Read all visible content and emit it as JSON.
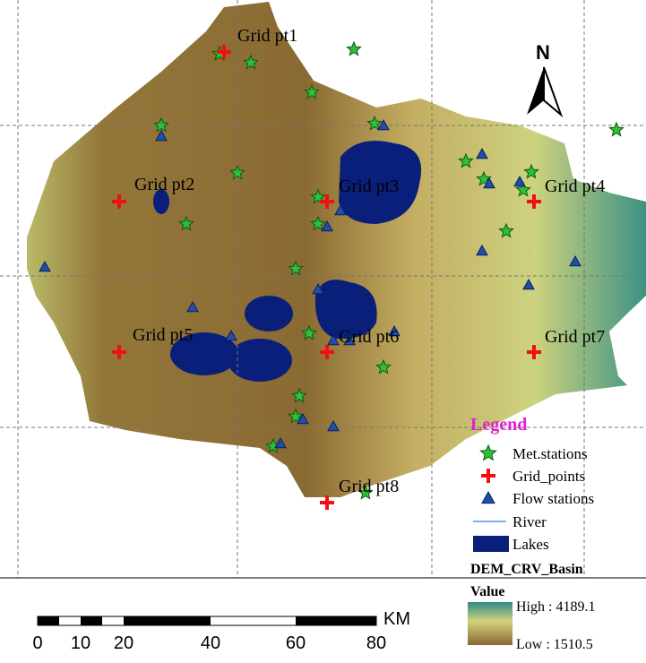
{
  "map": {
    "grid_labels": [
      "Grid pt1",
      "Grid pt2",
      "Grid pt3",
      "Grid pt4",
      "Grid pt5",
      "Grid pt6",
      "Grid pt7",
      "Grid pt8"
    ],
    "north": "N",
    "legend": {
      "title": "Legend",
      "items": [
        "Met.stations",
        "Grid_points",
        "Flow stations",
        "River",
        "Lakes"
      ],
      "layer": "DEM_CRV_Basin",
      "value_title": "Value",
      "high": "High : 4189.1",
      "low": "Low : 1510.5"
    },
    "scale": {
      "unit": "KM",
      "labels": [
        0,
        10,
        20,
        40,
        60,
        80
      ]
    }
  }
}
